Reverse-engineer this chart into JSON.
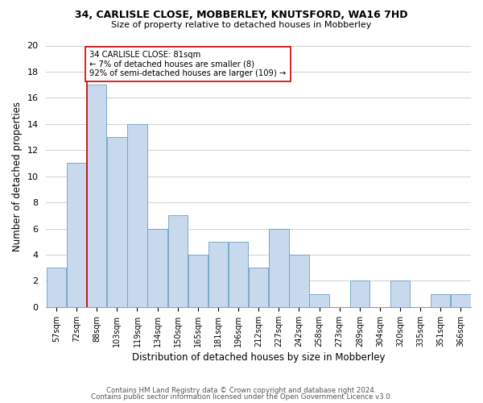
{
  "title1": "34, CARLISLE CLOSE, MOBBERLEY, KNUTSFORD, WA16 7HD",
  "title2": "Size of property relative to detached houses in Mobberley",
  "xlabel": "Distribution of detached houses by size in Mobberley",
  "ylabel": "Number of detached properties",
  "bins": [
    "57sqm",
    "72sqm",
    "88sqm",
    "103sqm",
    "119sqm",
    "134sqm",
    "150sqm",
    "165sqm",
    "181sqm",
    "196sqm",
    "212sqm",
    "227sqm",
    "242sqm",
    "258sqm",
    "273sqm",
    "289sqm",
    "304sqm",
    "320sqm",
    "335sqm",
    "351sqm",
    "366sqm"
  ],
  "values": [
    3,
    11,
    17,
    13,
    14,
    6,
    7,
    4,
    5,
    5,
    3,
    6,
    4,
    1,
    0,
    2,
    0,
    2,
    0,
    1,
    1
  ],
  "bar_color": "#c8d9ee",
  "bar_edge_color": "#6a9fc0",
  "red_line_bin_index": 2,
  "annotation_line1": "34 CARLISLE CLOSE: 81sqm",
  "annotation_line2": "← 7% of detached houses are smaller (8)",
  "annotation_line3": "92% of semi-detached houses are larger (109) →",
  "annotation_box_edge": "#cc0000",
  "red_line_color": "#cc0000",
  "ylim": [
    0,
    20
  ],
  "yticks": [
    0,
    2,
    4,
    6,
    8,
    10,
    12,
    14,
    16,
    18,
    20
  ],
  "footer1": "Contains HM Land Registry data © Crown copyright and database right 2024.",
  "footer2": "Contains public sector information licensed under the Open Government Licence v3.0.",
  "background_color": "#ffffff",
  "grid_color": "#d0d0d0"
}
